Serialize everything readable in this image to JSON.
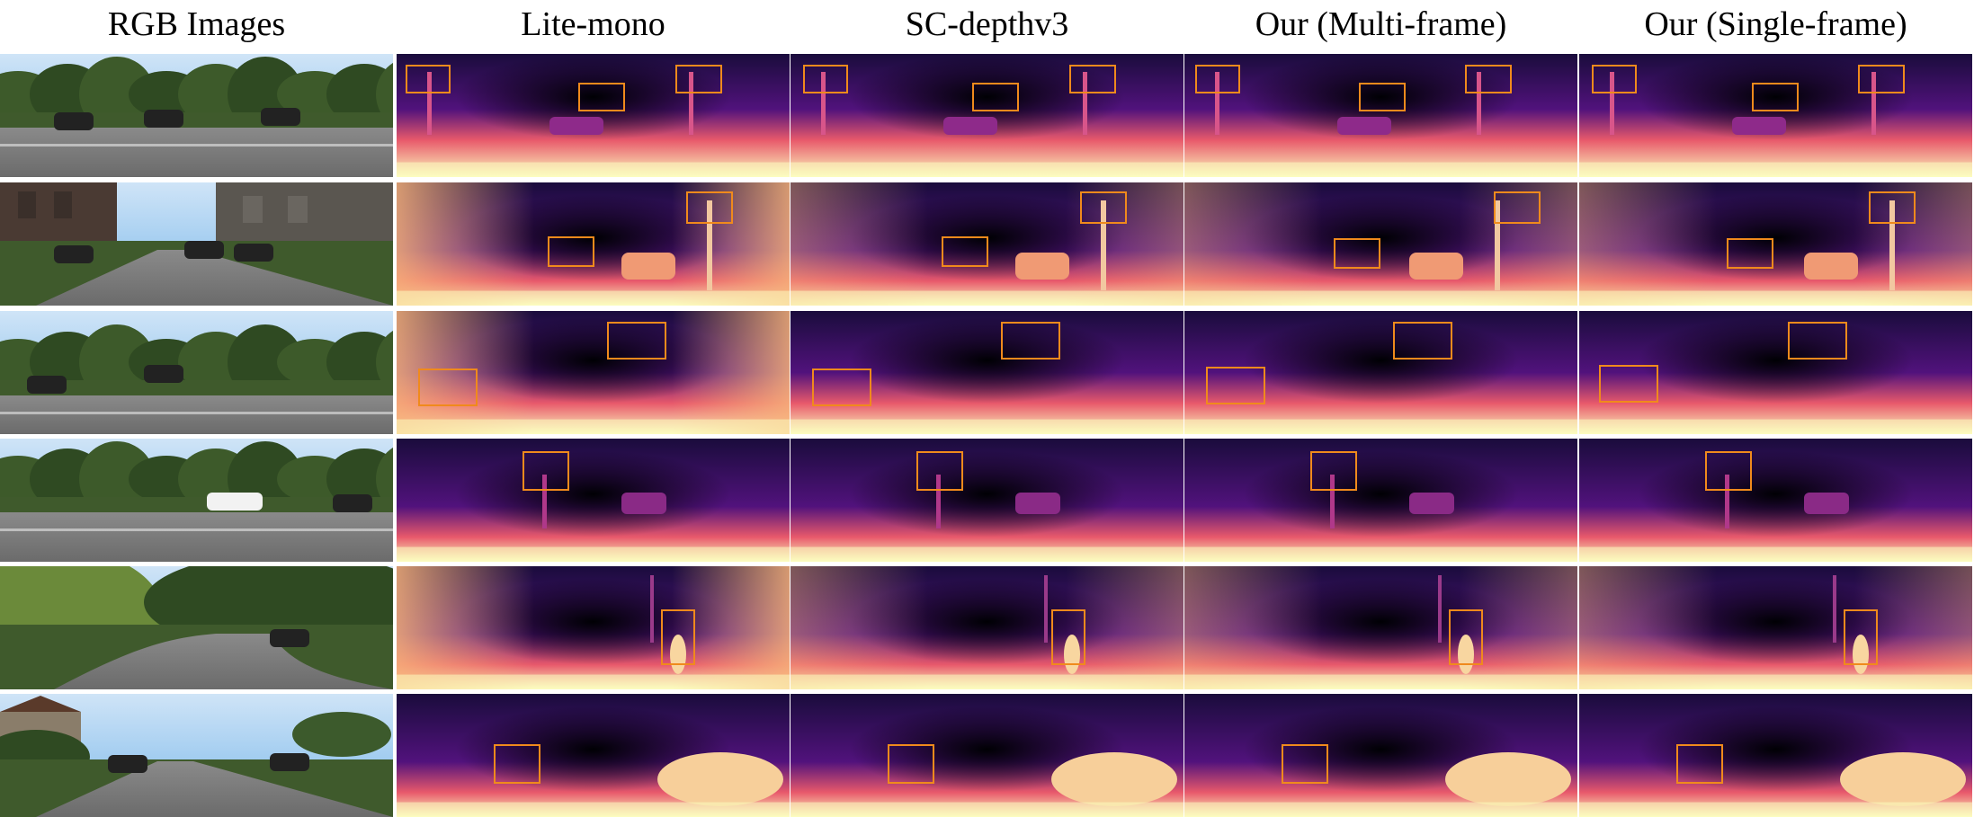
{
  "figure": {
    "columns": [
      {
        "id": "rgb",
        "header": "RGB Images"
      },
      {
        "id": "lite",
        "header": "Lite-mono"
      },
      {
        "id": "scd",
        "header": "SC-depthv3"
      },
      {
        "id": "multi",
        "header": "Our (Multi-frame)"
      },
      {
        "id": "single",
        "header": "Our (Single-frame)"
      }
    ],
    "rows": 6,
    "colors": {
      "highlight_box": "#f08a1c",
      "depth_far": "#000004",
      "depth_mid": "#51127c",
      "depth_near": "#fcfdbf",
      "sky": "#7ab8ea",
      "vegetation": "#2f4a22",
      "road": "#6b6b6b"
    }
  }
}
